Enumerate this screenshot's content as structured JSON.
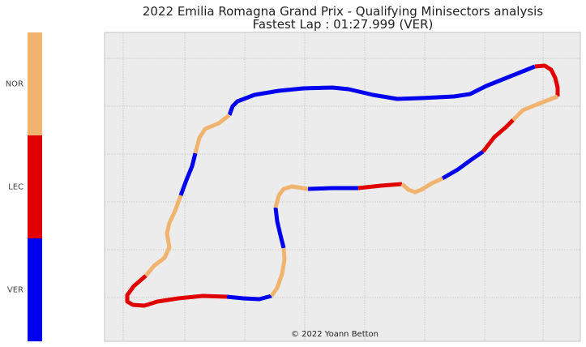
{
  "chart_data": {
    "type": "line",
    "title": "2022 Emilia Romagna Grand Prix - Qualifying Minisectors analysis",
    "subtitle": "Fastest Lap : 01:27.999 (VER)",
    "credit": "© 2022 Yoann Betton",
    "xlabel": "",
    "ylabel": "",
    "grid": true,
    "axes_ticks_labeled": false,
    "legend": {
      "type": "colorbar",
      "placement": "left",
      "entries": [
        {
          "name": "NOR",
          "color": "#f0b46e"
        },
        {
          "name": "LEC",
          "color": "#e00000"
        },
        {
          "name": "VER",
          "color": "#0000ee"
        }
      ]
    },
    "series": [
      {
        "name": "VER",
        "color": "#0000ee",
        "segments": [
          [
            [
              283,
              142
            ],
            [
              287,
              131
            ],
            [
              293,
              125
            ],
            [
              314,
              117
            ],
            [
              344,
              112
            ],
            [
              374,
              109
            ],
            [
              410,
              108
            ],
            [
              430,
              110
            ],
            [
              460,
              117
            ],
            [
              490,
              122
            ],
            [
              520,
              121
            ],
            [
              560,
              119
            ],
            [
              580,
              116
            ],
            [
              600,
              106
            ],
            [
              625,
              96
            ],
            [
              650,
              86
            ],
            [
              660,
              82
            ]
          ],
          [
            [
              241,
              189
            ],
            [
              237,
              205
            ],
            [
              230,
              222
            ],
            [
              223,
              241
            ]
          ],
          [
            [
              546,
              220
            ],
            [
              565,
              209
            ],
            [
              580,
              198
            ],
            [
              596,
              187
            ]
          ],
          [
            [
              380,
              233
            ],
            [
              410,
              232
            ],
            [
              442,
              232
            ]
          ],
          [
            [
              340,
              256
            ],
            [
              342,
              273
            ],
            [
              346,
              290
            ],
            [
              350,
              306
            ]
          ],
          [
            [
              280,
              366
            ],
            [
              300,
              368
            ],
            [
              320,
              369
            ],
            [
              335,
              365
            ]
          ]
        ]
      },
      {
        "name": "LEC",
        "color": "#e00000",
        "segments": [
          [
            [
              660,
              82
            ],
            [
              672,
              81
            ],
            [
              680,
              86
            ],
            [
              685,
              96
            ],
            [
              688,
              108
            ],
            [
              688,
              119
            ]
          ],
          [
            [
              596,
              187
            ],
            [
              610,
              169
            ],
            [
              624,
              157
            ],
            [
              633,
              148
            ]
          ],
          [
            [
              442,
              232
            ],
            [
              470,
              229
            ],
            [
              496,
              227
            ]
          ],
          [
            [
              180,
              340
            ],
            [
              165,
              353
            ],
            [
              157,
              364
            ],
            [
              157,
              372
            ],
            [
              164,
              376
            ],
            [
              178,
              377
            ],
            [
              194,
              372
            ],
            [
              220,
              368
            ],
            [
              250,
              365
            ],
            [
              280,
              366
            ]
          ]
        ]
      },
      {
        "name": "NOR",
        "color": "#f0b46e",
        "segments": [
          [
            [
              688,
              119
            ],
            [
              662,
              129
            ],
            [
              645,
              136
            ],
            [
              633,
              148
            ]
          ],
          [
            [
              496,
              227
            ],
            [
              504,
              234
            ],
            [
              512,
              237
            ],
            [
              520,
              234
            ],
            [
              533,
              226
            ],
            [
              546,
              220
            ]
          ],
          [
            [
              283,
              142
            ],
            [
              270,
              152
            ],
            [
              253,
              159
            ],
            [
              246,
              170
            ],
            [
              241,
              189
            ]
          ],
          [
            [
              223,
              241
            ],
            [
              216,
              260
            ],
            [
              209,
              275
            ],
            [
              206,
              288
            ],
            [
              209,
              305
            ],
            [
              203,
              318
            ],
            [
              190,
              328
            ],
            [
              180,
              340
            ]
          ],
          [
            [
              380,
              233
            ],
            [
              360,
              230
            ],
            [
              350,
              233
            ],
            [
              344,
              241
            ],
            [
              340,
              256
            ]
          ],
          [
            [
              350,
              306
            ],
            [
              351,
              320
            ],
            [
              348,
              338
            ],
            [
              342,
              355
            ],
            [
              335,
              365
            ]
          ]
        ]
      }
    ]
  }
}
